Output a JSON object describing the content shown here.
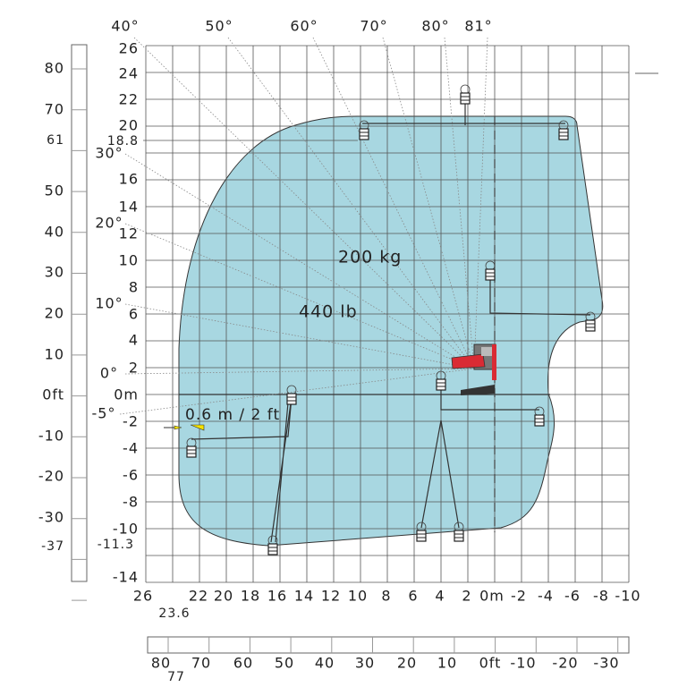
{
  "top_angles": [
    "40°",
    "50°",
    "60°",
    "70°",
    "80°",
    "81°"
  ],
  "left_angles": [
    "30°",
    "20°",
    "10°",
    "0°",
    "-5°"
  ],
  "meter_y_labels": [
    "26",
    "24",
    "22",
    "20",
    "16",
    "14",
    "12",
    "10",
    "8",
    "6",
    "4",
    "2",
    "0m",
    "-2",
    "-4",
    "-6",
    "-8",
    "-10",
    "-14"
  ],
  "meter_x_labels": [
    "26",
    "22",
    "20",
    "18",
    "16",
    "14",
    "12",
    "10",
    "8",
    "6",
    "4",
    "2",
    "0m",
    "-2",
    "-4",
    "-6",
    "-8",
    "-10"
  ],
  "feet_y_labels": [
    "80",
    "70",
    "61",
    "50",
    "40",
    "30",
    "20",
    "10",
    "0ft",
    "-10",
    "-20",
    "-30",
    "-37"
  ],
  "feet_x_labels": [
    "80",
    "77",
    "70",
    "60",
    "50",
    "40",
    "30",
    "20",
    "10",
    "0ft",
    "-10",
    "-20",
    "-30"
  ],
  "max_height": "18.8",
  "max_depth": "-11.3",
  "max_outreach": "23.6",
  "load_kg": "200 kg",
  "load_lb": "440 lb",
  "offset": "0.6 m / 2 ft"
}
